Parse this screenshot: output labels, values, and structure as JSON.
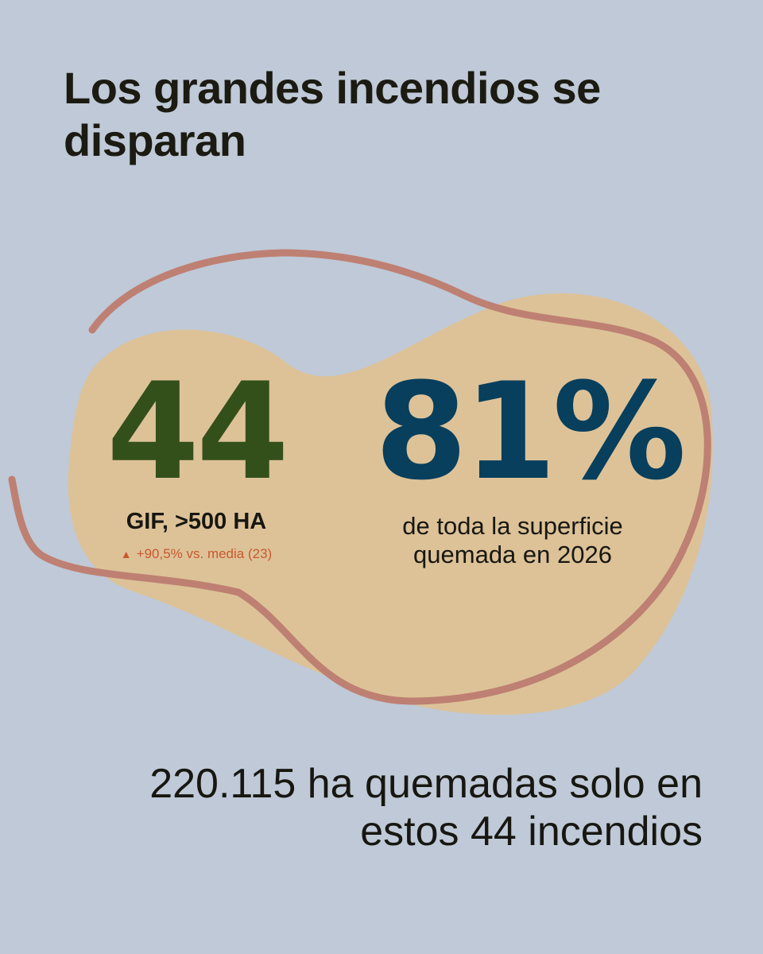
{
  "title": "Los grandes incendios se disparan",
  "stat_left": {
    "value": "44",
    "label": "GIF, >500 HA",
    "delta_icon": "up-triangle-icon",
    "delta_arrow": "▲",
    "delta_text": "+90,5% vs. media (23)"
  },
  "stat_right": {
    "value": "81%",
    "description_line1": "de toda la superficie",
    "description_line2": "quemada en 2026"
  },
  "bottom": {
    "line1": "220.115 ha quemadas solo en",
    "line2": "estos 44 incendios"
  },
  "colors": {
    "background": "#bfc9d7",
    "blob_fill": "#ddc298",
    "outline_stroke": "#be8072",
    "stat_left": "#33501b",
    "stat_right": "#073f5d",
    "delta": "#c9582e",
    "text": "#171711"
  }
}
